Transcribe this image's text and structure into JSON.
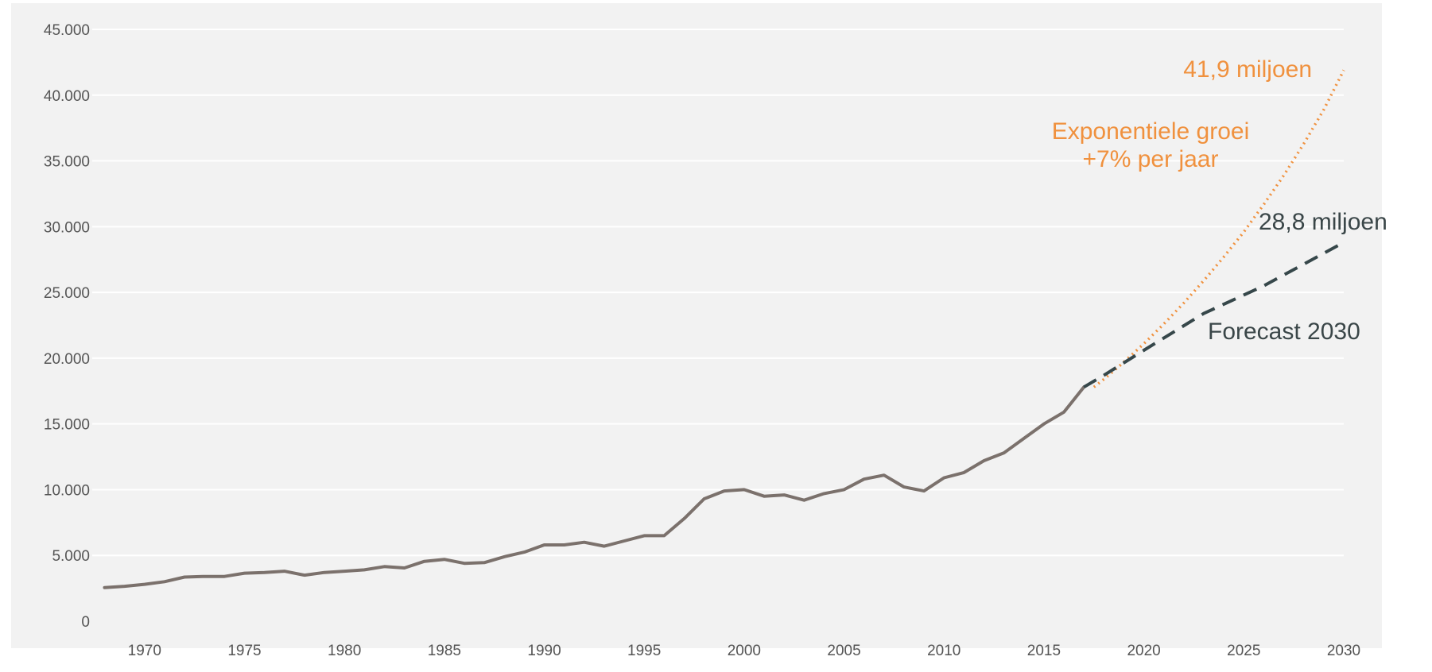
{
  "colors": {
    "background": "#f2f2f2",
    "grid": "#ffffff",
    "historical": "#7b716c",
    "forecast": "#36474a",
    "exponential": "#f0913e",
    "annotation_orange": "#f0913e",
    "annotation_dark": "#3a4648"
  },
  "chart_data": {
    "type": "line",
    "xlim": [
      1968,
      2030
    ],
    "ylim": [
      0,
      45000
    ],
    "grid": true,
    "x_ticks": [
      1970,
      1975,
      1980,
      1985,
      1990,
      1995,
      2000,
      2005,
      2010,
      2015,
      2020,
      2025,
      2030
    ],
    "x_tick_labels": [
      "1970",
      "1975",
      "1980",
      "1985",
      "1990",
      "1995",
      "2000",
      "2005",
      "2010",
      "2015",
      "2020",
      "2025",
      "2030"
    ],
    "y_ticks": [
      0,
      5000,
      10000,
      15000,
      20000,
      25000,
      30000,
      35000,
      40000,
      45000
    ],
    "y_tick_labels": [
      "0",
      "5.000",
      "10.000",
      "15.000",
      "20.000",
      "25.000",
      "30.000",
      "35.000",
      "40.000",
      "45.000"
    ],
    "series": [
      {
        "style": "solid",
        "points": [
          [
            1968,
            2550
          ],
          [
            1969,
            2650
          ],
          [
            1970,
            2800
          ],
          [
            1971,
            3000
          ],
          [
            1972,
            3350
          ],
          [
            1973,
            3400
          ],
          [
            1974,
            3400
          ],
          [
            1975,
            3650
          ],
          [
            1976,
            3700
          ],
          [
            1977,
            3800
          ],
          [
            1978,
            3500
          ],
          [
            1979,
            3700
          ],
          [
            1980,
            3800
          ],
          [
            1981,
            3900
          ],
          [
            1982,
            4150
          ],
          [
            1983,
            4050
          ],
          [
            1984,
            4550
          ],
          [
            1985,
            4700
          ],
          [
            1986,
            4400
          ],
          [
            1987,
            4450
          ],
          [
            1988,
            4900
          ],
          [
            1989,
            5250
          ],
          [
            1990,
            5800
          ],
          [
            1991,
            5800
          ],
          [
            1992,
            6000
          ],
          [
            1993,
            5700
          ],
          [
            1994,
            6100
          ],
          [
            1995,
            6500
          ],
          [
            1996,
            6500
          ],
          [
            1997,
            7800
          ],
          [
            1998,
            9300
          ],
          [
            1999,
            9900
          ],
          [
            2000,
            10000
          ],
          [
            2001,
            9500
          ],
          [
            2002,
            9600
          ],
          [
            2003,
            9200
          ],
          [
            2004,
            9700
          ],
          [
            2005,
            10000
          ],
          [
            2006,
            10800
          ],
          [
            2007,
            11100
          ],
          [
            2008,
            10200
          ],
          [
            2009,
            9900
          ],
          [
            2010,
            10900
          ],
          [
            2011,
            11300
          ],
          [
            2012,
            12200
          ],
          [
            2013,
            12800
          ],
          [
            2014,
            13900
          ],
          [
            2015,
            15000
          ],
          [
            2016,
            15900
          ],
          [
            2017,
            17800
          ]
        ]
      },
      {
        "style": "dashed",
        "points": [
          [
            2017,
            17800
          ],
          [
            2018,
            18700
          ],
          [
            2020,
            20600
          ],
          [
            2023,
            23400
          ],
          [
            2026,
            25500
          ],
          [
            2030,
            28800
          ]
        ]
      },
      {
        "style": "dotted",
        "points": [
          [
            2017.5,
            17800
          ],
          [
            2018,
            18400
          ],
          [
            2019,
            19700
          ],
          [
            2020,
            21100
          ],
          [
            2021,
            22600
          ],
          [
            2022,
            24200
          ],
          [
            2023,
            25900
          ],
          [
            2024,
            27700
          ],
          [
            2025,
            29600
          ],
          [
            2026,
            31700
          ],
          [
            2027,
            33900
          ],
          [
            2028,
            36300
          ],
          [
            2029,
            38900
          ],
          [
            2030,
            41900
          ]
        ]
      }
    ],
    "annotations": {
      "exp_value": "41,9 miljoen",
      "exp_label_line1": "Exponentiele groei",
      "exp_label_line2": "+7% per jaar",
      "forecast_value": "28,8 miljoen",
      "forecast_label": "Forecast 2030"
    }
  }
}
